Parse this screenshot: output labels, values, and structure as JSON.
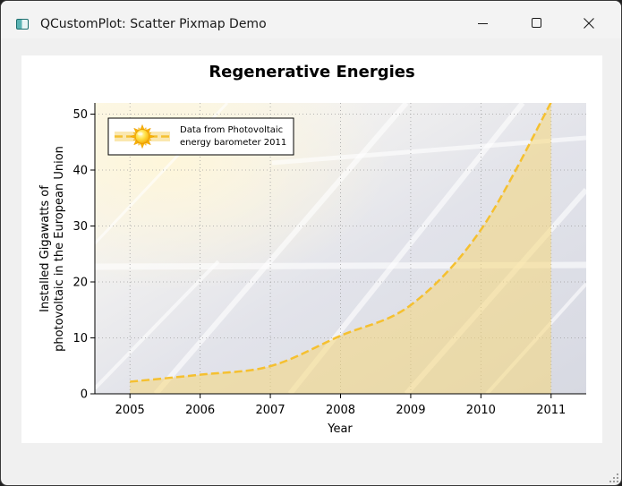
{
  "window": {
    "title": "QCustomPlot: Scatter Pixmap Demo",
    "minimize_icon": "minimize-icon",
    "maximize_icon": "maximize-icon",
    "close_icon": "close-icon"
  },
  "chart_data": {
    "type": "line",
    "title": "Regenerative Energies",
    "xlabel": "Year",
    "ylabel": "Installed Gigawatts of\nphotovoltaic in the European Union",
    "ylabel_lines": [
      "Installed Gigawatts of",
      "photovoltaic in the European Union"
    ],
    "x": [
      2005,
      2006,
      2007,
      2008,
      2009,
      2010,
      2011
    ],
    "xlim": [
      2004.5,
      2011.5
    ],
    "ylim": [
      0,
      52
    ],
    "yticks": [
      0,
      10,
      20,
      30,
      40,
      50
    ],
    "xticks": [
      2005,
      2006,
      2007,
      2008,
      2009,
      2010,
      2011
    ],
    "grid": true,
    "legend_placement": "top-left",
    "series": [
      {
        "name": "Data from Photovoltaic energy barometer 2011",
        "name_lines": [
          "Data from Photovoltaic",
          "energy barometer 2011"
        ],
        "values": [
          2.17,
          3.42,
          4.94,
          10.38,
          15.86,
          29.33,
          52.1
        ],
        "color": "#f5c030",
        "fill_color": "#f6d77a",
        "marker": "sun-icon",
        "line_style": "dashed"
      }
    ]
  }
}
